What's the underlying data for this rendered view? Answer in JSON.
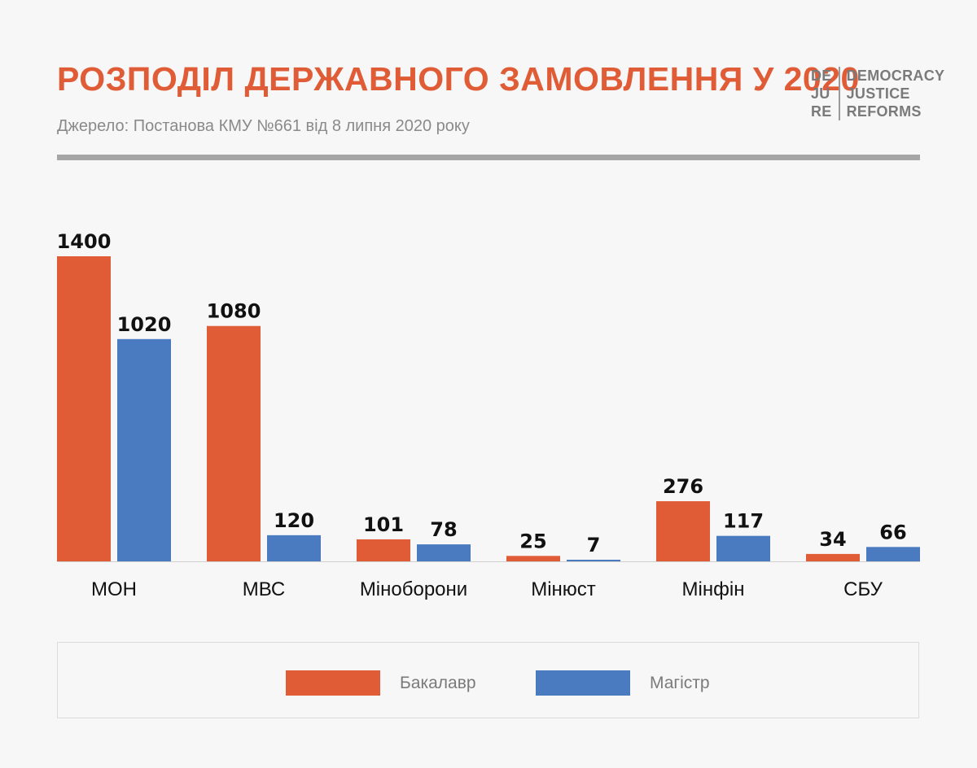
{
  "header": {
    "title": "РОЗПОДІЛ ДЕРЖАВНОГО ЗАМОВЛЕННЯ У 2020",
    "subtitle": "Джерело: Постанова КМУ №661 від 8 липня 2020 року"
  },
  "logo": {
    "left_lines": [
      "DE",
      "JU",
      "RE"
    ],
    "right_lines": [
      "DEMOCRACY",
      "JUSTICE",
      "REFORMS"
    ]
  },
  "colors": {
    "title": "#e05c36",
    "bachelor": "#e05c36",
    "master": "#4a7bc0",
    "value_label": "#111111",
    "category_label": "#111111",
    "axis": "#d0d0d0"
  },
  "chart_data": {
    "type": "bar",
    "title": "РОЗПОДІЛ ДЕРЖАВНОГО ЗАМОВЛЕННЯ У 2020",
    "subtitle": "Джерело: Постанова КМУ №661 від 8 липня 2020 року",
    "categories": [
      "МОН",
      "МВС",
      "Міноборони",
      "Мінюст",
      "Мінфін",
      "СБУ"
    ],
    "series": [
      {
        "name": "Бакалавр",
        "color": "#e05c36",
        "values": [
          1400,
          1080,
          101,
          25,
          276,
          34
        ]
      },
      {
        "name": "Магістр",
        "color": "#4a7bc0",
        "values": [
          1020,
          120,
          78,
          7,
          117,
          66
        ]
      }
    ],
    "ylim": [
      0,
      1400
    ],
    "xlabel": "",
    "ylabel": "",
    "grid": false,
    "data_labels": true,
    "legend_position": "bottom"
  },
  "legend": {
    "items": [
      {
        "label": "Бакалавр",
        "color": "#e05c36"
      },
      {
        "label": "Магістр",
        "color": "#4a7bc0"
      }
    ]
  }
}
